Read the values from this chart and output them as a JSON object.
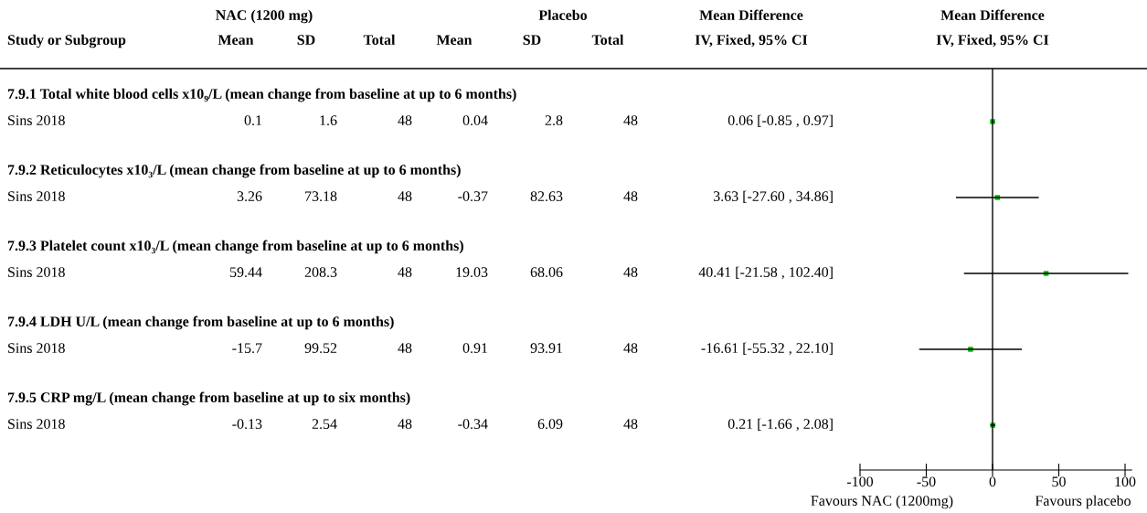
{
  "chart_data": {
    "type": "scatter",
    "orientation": "horizontal",
    "categories": [
      null,
      null,
      null,
      null,
      null
    ],
    "values": [
      0.06,
      3.63,
      40.41,
      -16.61,
      0.21
    ],
    "errors": [
      [
        -0.85,
        0.97
      ],
      [
        -27.6,
        34.86
      ],
      [
        -21.58,
        102.4
      ],
      [
        -55.32,
        22.1
      ],
      [
        -1.66,
        2.08
      ]
    ],
    "value_labels": [
      "0.06 [-0.85 , 0.97]",
      "3.63 [-27.60 , 34.86]",
      "40.41 [-21.58 , 102.40]",
      "-16.61 [-55.32 , 22.10]",
      "0.21 [-1.66 , 2.08]"
    ],
    "color": "#00c000",
    "marker": "square",
    "grid": false,
    "xlim": [
      -100,
      105
    ],
    "xticks": [
      -100,
      -50,
      0,
      50,
      100
    ],
    "ref_lines": [
      {
        "axis": "x",
        "value": 0,
        "color": "#000000"
      }
    ],
    "annotations": [
      "NAC (1200 mg)",
      "Placebo",
      "Mean Difference",
      "Mean Difference",
      "Study or Subgroup",
      "Mean",
      "SD",
      "Total",
      "Mean",
      "SD",
      "Total",
      "IV, Fixed, 95% CI",
      "IV, Fixed, 95% CI",
      "7.9.1 Total white blood cells x10₉/L (mean change from baseline at up to 6 months)",
      "7.9.2 Reticulocytes x10₃/L (mean change from baseline at up to 6 months)",
      "7.9.3 Platelet count x10₃/L (mean change from baseline at up to 6 months)",
      "7.9.4 LDH U/L (mean change from baseline at up to 6 months)",
      "7.9.5 CRP mg/L (mean change from baseline at up to six months)",
      "Sins 2018",
      "0.1",
      "1.6",
      "48",
      "0.04",
      "2.8",
      "48",
      "Sins 2018",
      "3.26",
      "73.18",
      "48",
      "-0.37",
      "82.63",
      "48",
      "Sins 2018",
      "59.44",
      "208.3",
      "48",
      "19.03",
      "68.06",
      "48",
      "Sins 2018",
      "-15.7",
      "99.52",
      "48",
      "0.91",
      "93.91",
      "48",
      "Sins 2018",
      "-0.13",
      "2.54",
      "48",
      "-0.34",
      "6.09",
      "48",
      "Favours NAC (1200mg)",
      "Favours placebo"
    ]
  }
}
